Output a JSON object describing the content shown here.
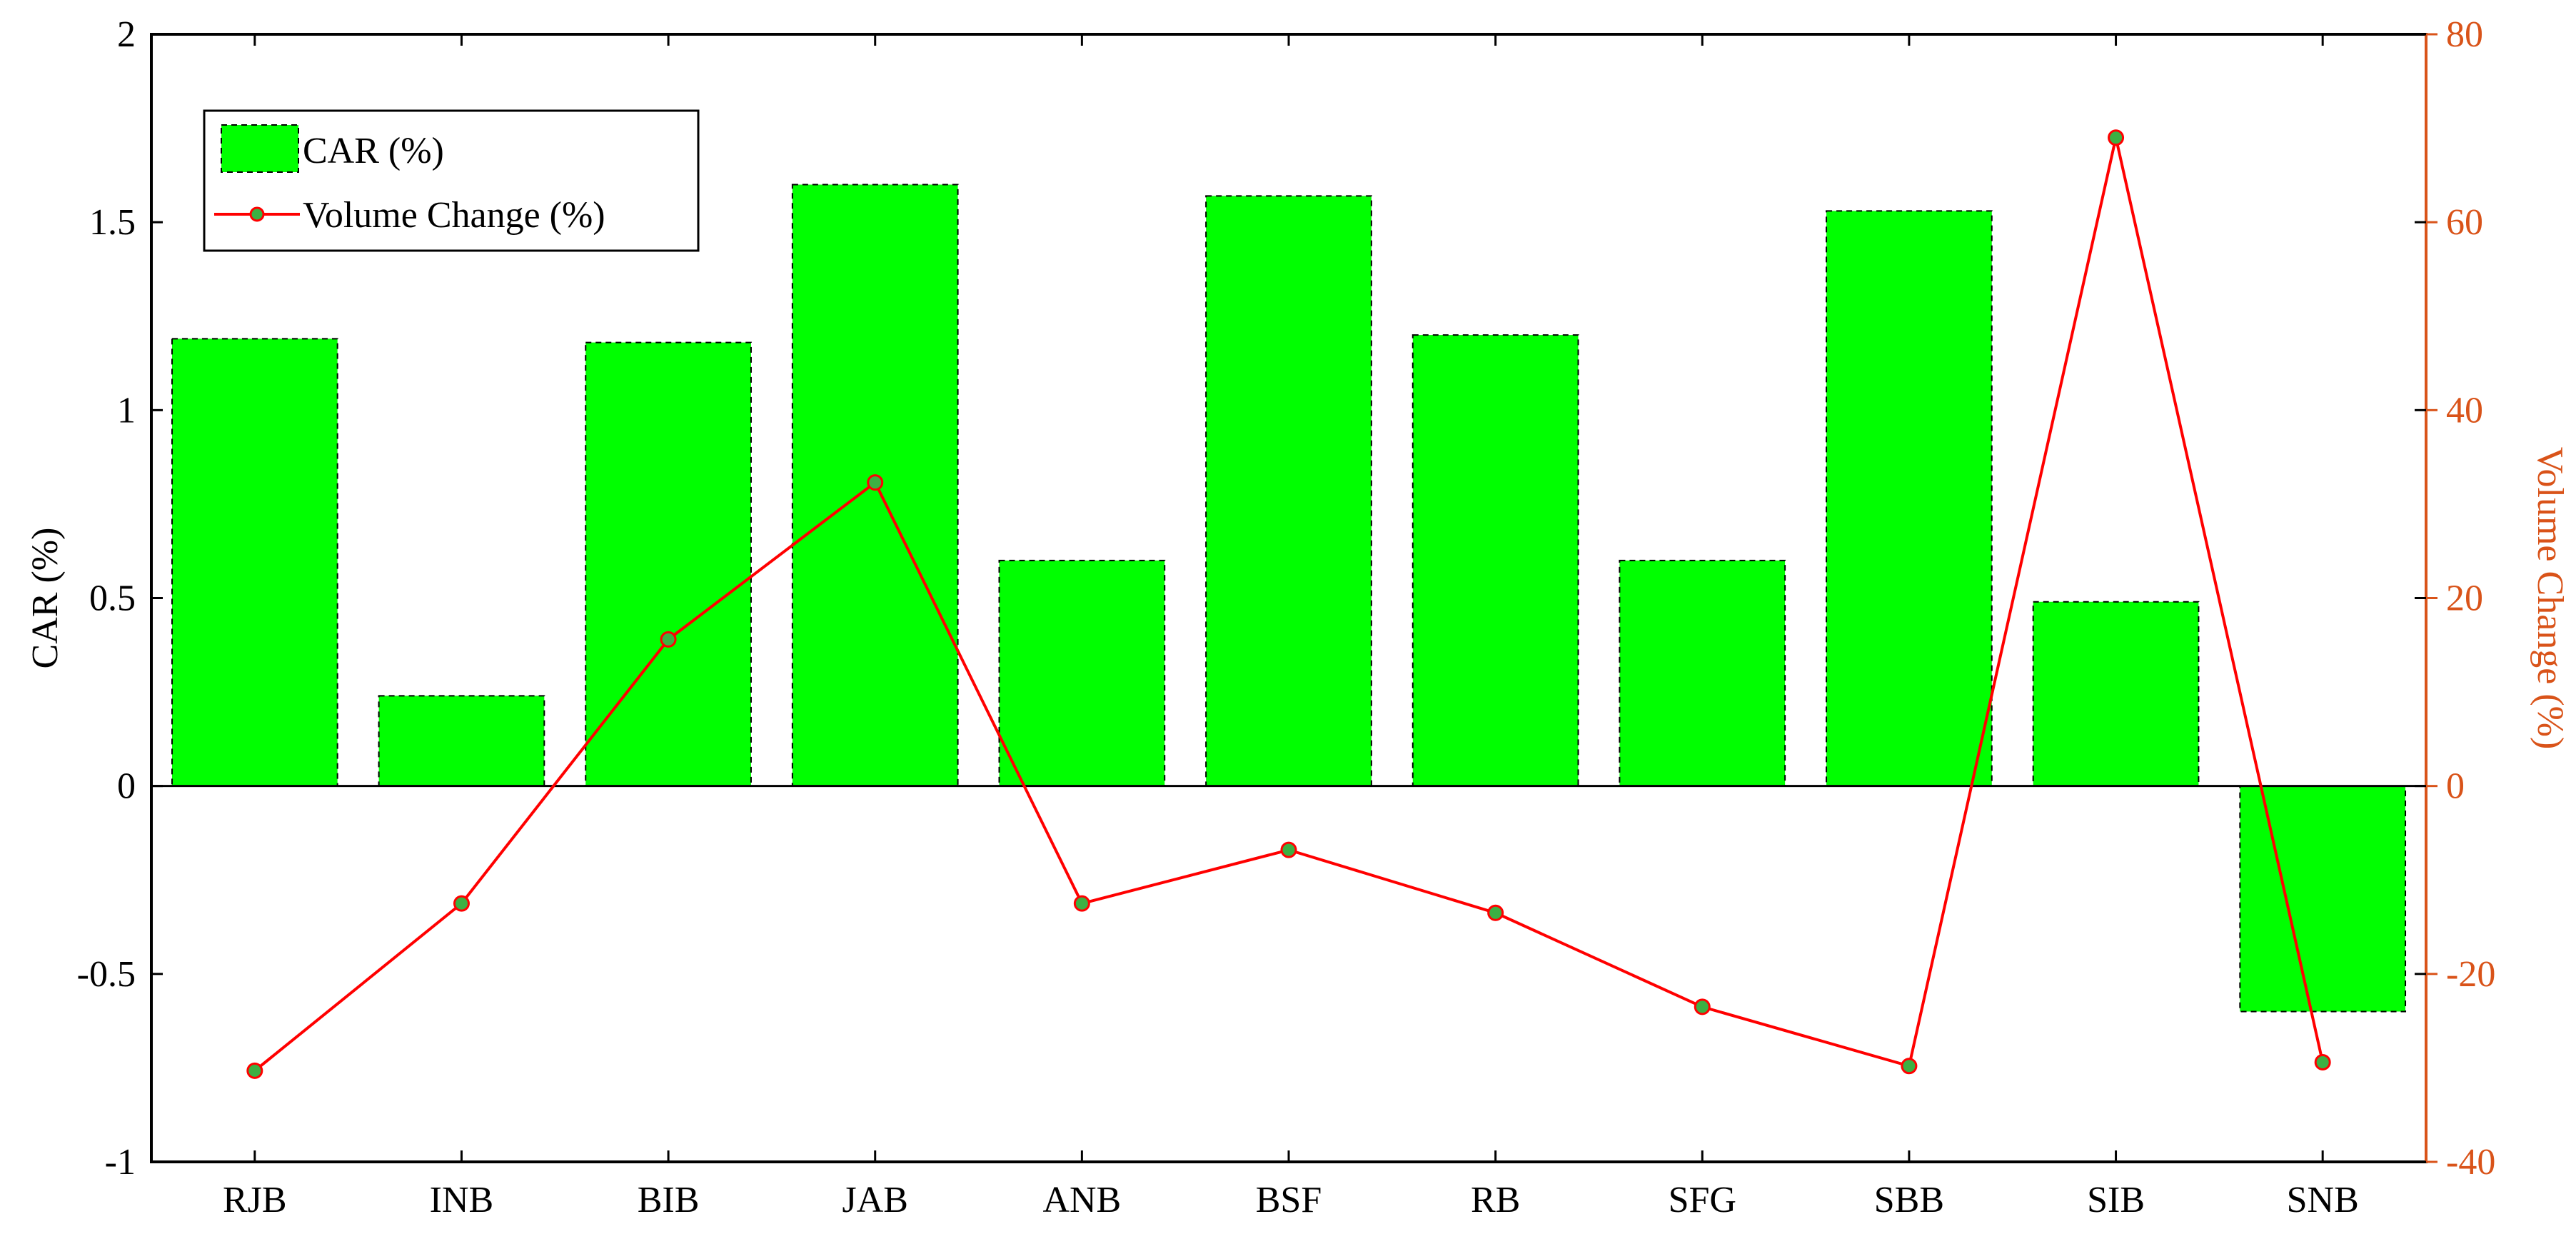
{
  "chart_data": {
    "type": "bar",
    "categories": [
      "RJB",
      "INB",
      "BIB",
      "JAB",
      "ANB",
      "BSF",
      "RB",
      "SFG",
      "SBB",
      "SIB",
      "SNB"
    ],
    "series": [
      {
        "name": "CAR (%)",
        "type": "bar",
        "axis": "left",
        "color": "#00ff00",
        "values": [
          1.19,
          0.24,
          1.18,
          1.6,
          0.6,
          1.57,
          1.2,
          0.6,
          1.53,
          0.49,
          -0.6
        ]
      },
      {
        "name": "Volume Change (%)",
        "type": "line",
        "axis": "right",
        "color": "#ff0000",
        "marker_color": "#3cb043",
        "values": [
          -30.3,
          -12.5,
          15.6,
          32.3,
          -12.5,
          -6.8,
          -13.5,
          -23.5,
          -29.8,
          69.0,
          -29.4
        ]
      }
    ],
    "ylabel": "CAR (%)",
    "ylabel_right": "Volume Change (%)",
    "ylim": [
      -1,
      2
    ],
    "ylim_right": [
      -40,
      80
    ],
    "yticks": [
      "-1",
      "-0.5",
      "0",
      "0.5",
      "1",
      "1.5",
      "2"
    ],
    "yticks_right": [
      "-40",
      "-20",
      "0",
      "20",
      "40",
      "60",
      "80"
    ],
    "right_axis_color": "#d95319",
    "legend_position": "top-left",
    "grid": false
  }
}
